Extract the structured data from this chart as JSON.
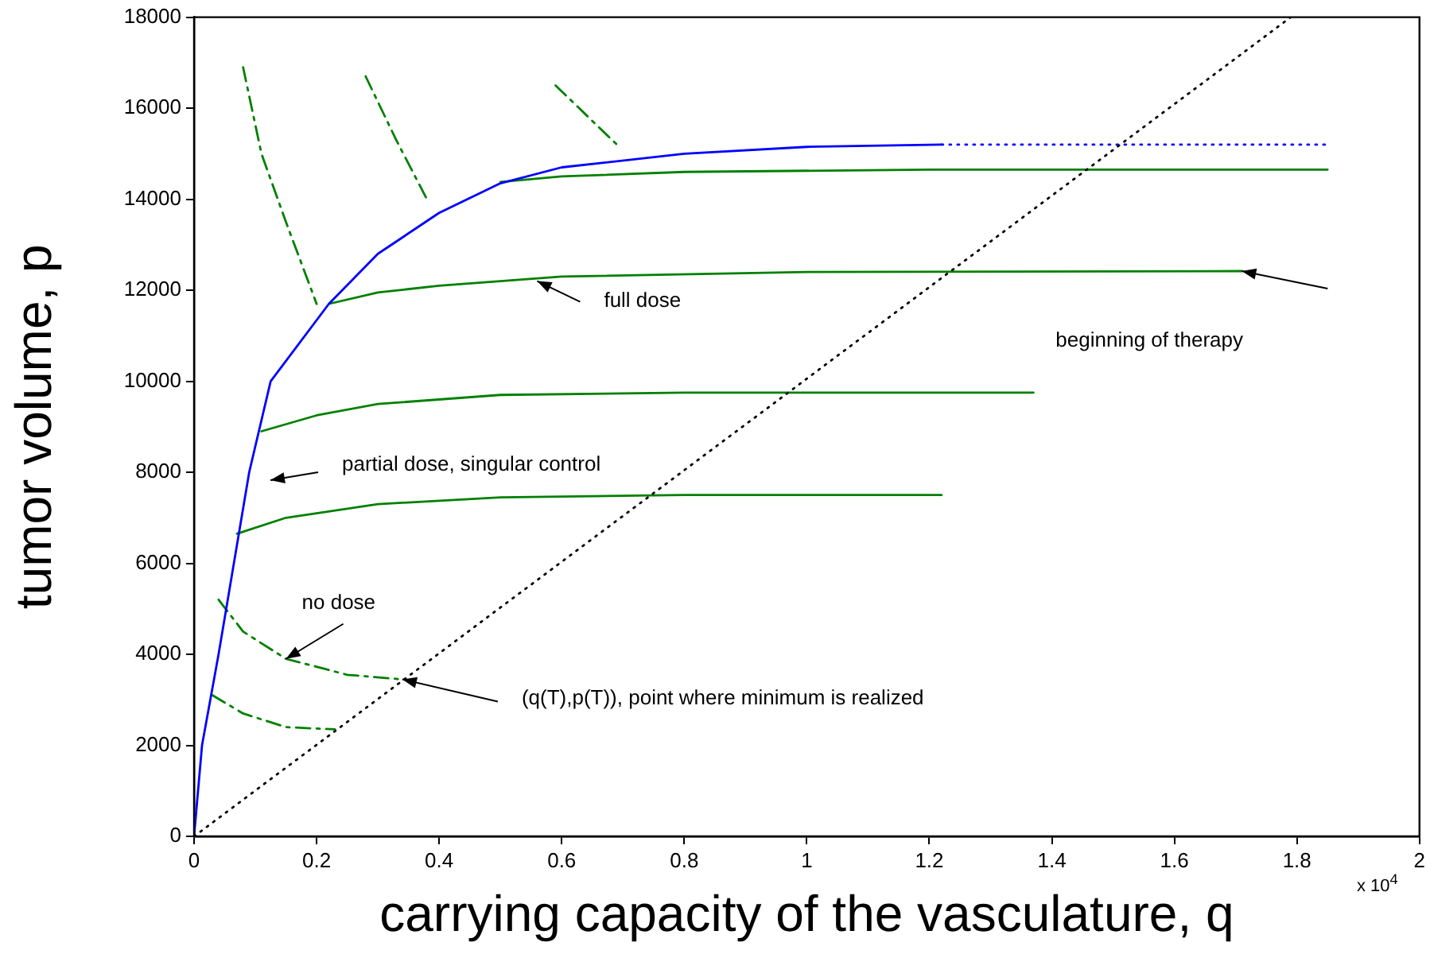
{
  "chart_data": {
    "type": "line",
    "xlabel": "carrying capacity of the vasculature, q",
    "ylabel": "tumor volume, p",
    "xlim": [
      0,
      2
    ],
    "xticks": [
      0,
      0.2,
      0.4,
      0.6,
      0.8,
      1,
      1.2,
      1.4,
      1.6,
      1.8,
      2
    ],
    "ylim": [
      0,
      18000
    ],
    "yticks": [
      0,
      2000,
      4000,
      6000,
      8000,
      10000,
      12000,
      14000,
      16000,
      18000
    ],
    "grid": false,
    "legend": false,
    "marker": "none",
    "series": [
      {
        "color": "#000000",
        "line_style": "dotted",
        "x": [
          0,
          1.79
        ],
        "values": [
          0,
          18000
        ]
      },
      {
        "color": "#0000ff",
        "line_style": "solid",
        "x": [
          0,
          0.013,
          0.04,
          0.065,
          0.09,
          0.125,
          0.22,
          0.3,
          0.4,
          0.5,
          0.6,
          0.8,
          1.0,
          1.22
        ],
        "values": [
          0,
          2000,
          4000,
          6000,
          8000,
          10000,
          11700,
          12800,
          13700,
          14350,
          14700,
          15000,
          15150,
          15200
        ]
      },
      {
        "color": "#0000ff",
        "line_style": "dotted",
        "x": [
          1.22,
          1.85
        ],
        "values": [
          15200,
          15200
        ]
      },
      {
        "color": "#008000",
        "line_style": "solid",
        "x": [
          1.85,
          1.2,
          0.8,
          0.6,
          0.5
        ],
        "values": [
          14650,
          14650,
          14600,
          14500,
          14380
        ]
      },
      {
        "color": "#008000",
        "line_style": "solid",
        "x": [
          1.71,
          1.0,
          0.6,
          0.4,
          0.3,
          0.22
        ],
        "values": [
          12420,
          12400,
          12300,
          12100,
          11950,
          11700
        ]
      },
      {
        "color": "#008000",
        "line_style": "solid",
        "x": [
          1.37,
          0.8,
          0.5,
          0.3,
          0.2,
          0.11
        ],
        "values": [
          9750,
          9750,
          9700,
          9500,
          9250,
          8900
        ]
      },
      {
        "color": "#008000",
        "line_style": "solid",
        "x": [
          1.22,
          0.8,
          0.5,
          0.3,
          0.15,
          0.07
        ],
        "values": [
          7500,
          7500,
          7450,
          7300,
          7000,
          6650
        ]
      },
      {
        "color": "#008000",
        "line_style": "dashed",
        "x": [
          0.08,
          0.11,
          0.15,
          0.2
        ],
        "values": [
          16900,
          15000,
          13500,
          11700
        ]
      },
      {
        "color": "#008000",
        "line_style": "dashed",
        "x": [
          0.28,
          0.33,
          0.38
        ],
        "values": [
          16700,
          15300,
          14000
        ]
      },
      {
        "color": "#008000",
        "line_style": "dashed",
        "x": [
          0.59,
          0.69
        ],
        "values": [
          16500,
          15200
        ]
      },
      {
        "color": "#008000",
        "line_style": "dashed",
        "x": [
          0.04,
          0.08,
          0.15,
          0.25,
          0.34
        ],
        "values": [
          5200,
          4500,
          3900,
          3550,
          3450
        ]
      },
      {
        "color": "#008000",
        "line_style": "dashed",
        "x": [
          0.03,
          0.08,
          0.15,
          0.23
        ],
        "values": [
          3100,
          2700,
          2400,
          2350
        ]
      }
    ],
    "annotations": [
      {
        "text": "full dose",
        "x": 0.56,
        "y": 12200
      },
      {
        "text": "beginning of therapy",
        "x": 1.71,
        "y": 12420
      },
      "partial dose, singular control",
      {
        "text": "no dose",
        "x": 0.15,
        "y": 3900
      },
      {
        "text": "(q(T),p(T)), point where minimum is realized",
        "x": 0.34,
        "y": 3450
      },
      "x 10$^{4}$"
    ]
  }
}
